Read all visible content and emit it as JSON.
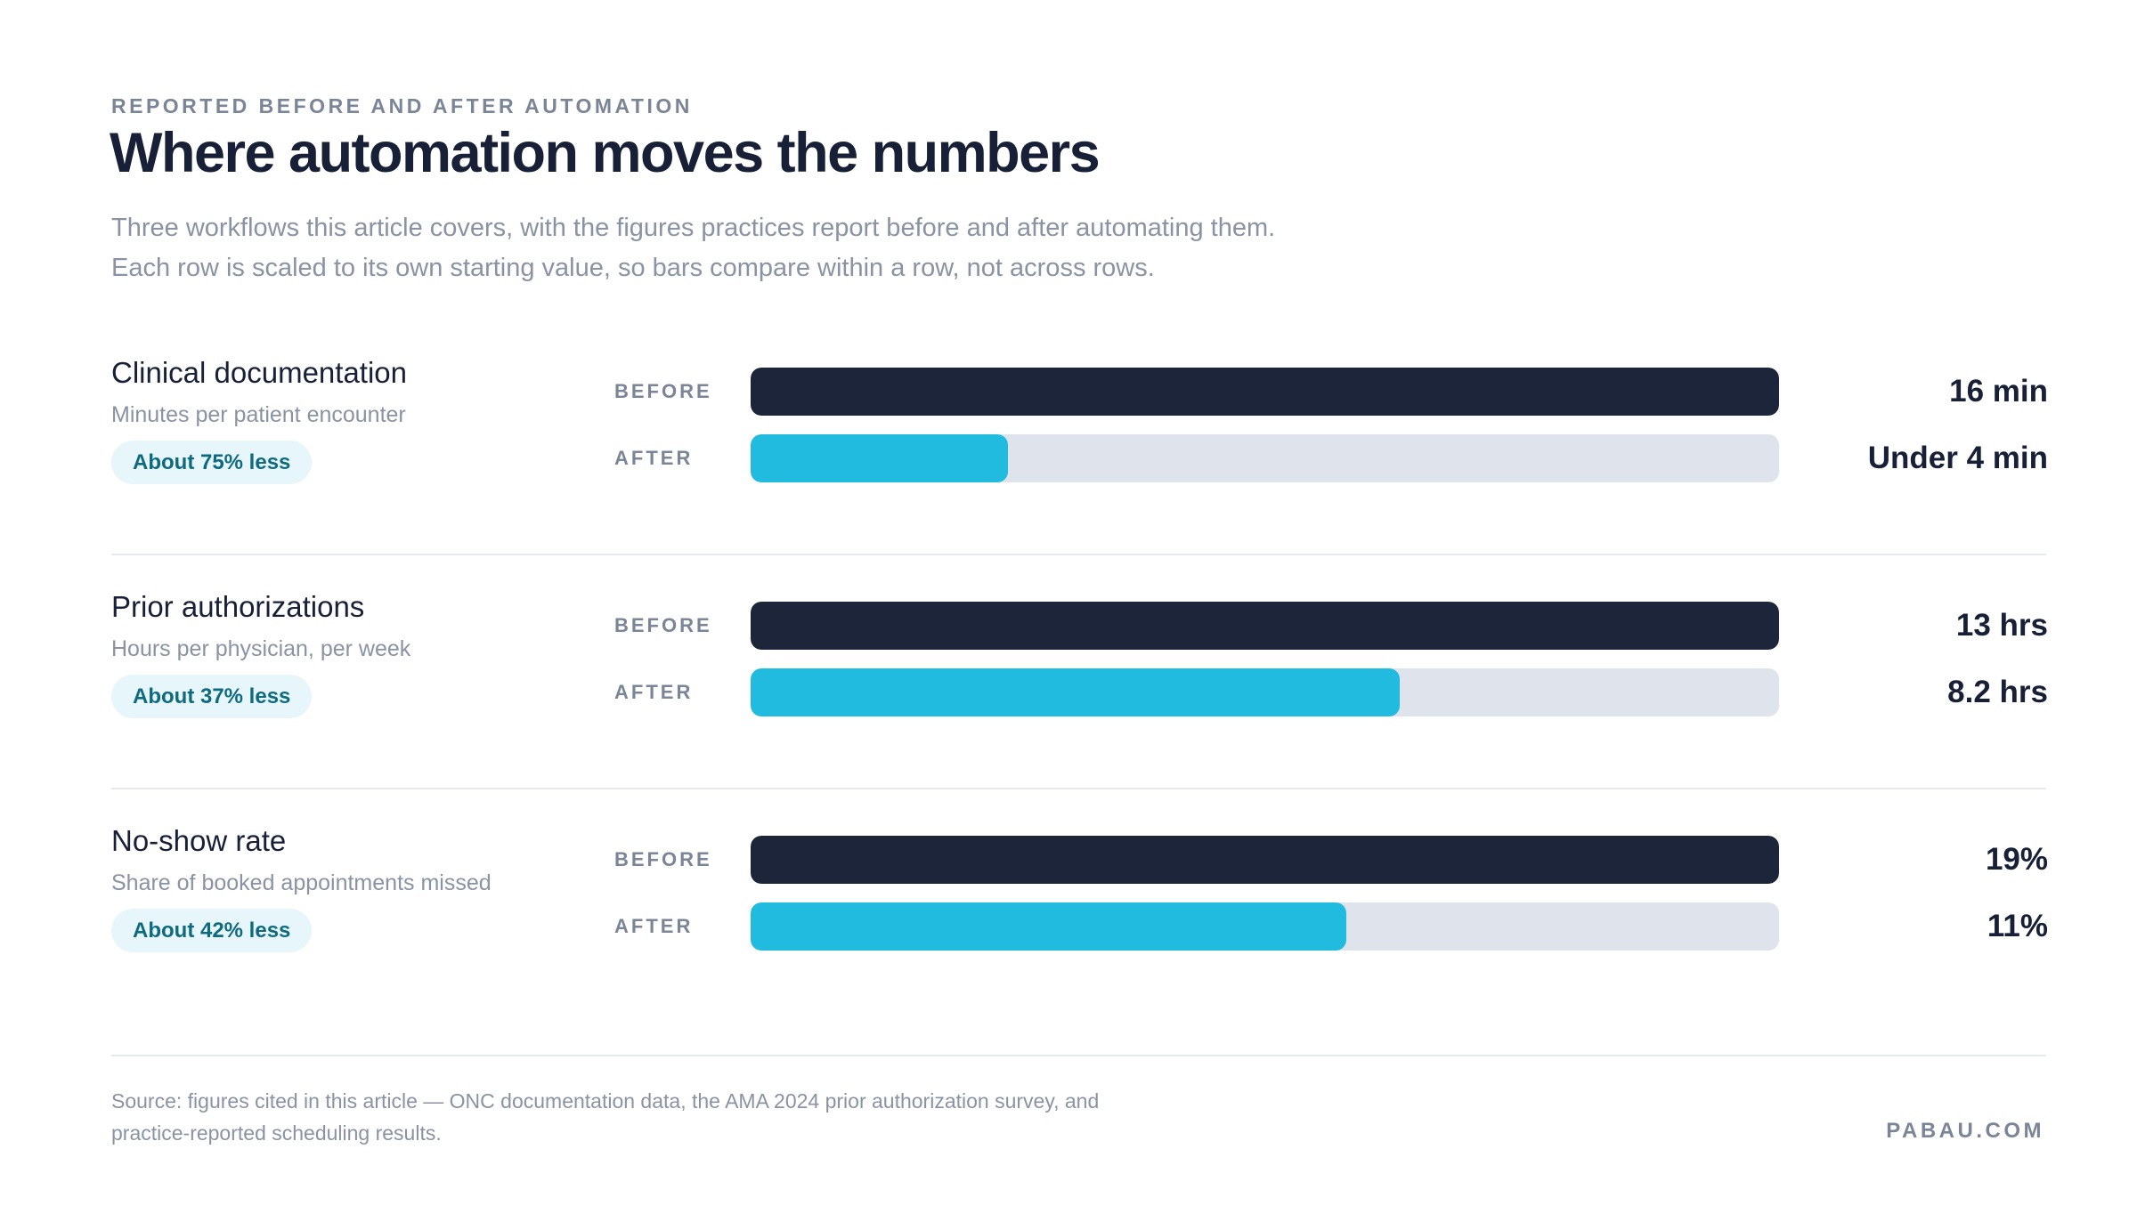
{
  "header": {
    "eyebrow": "REPORTED BEFORE AND AFTER AUTOMATION",
    "title": "Where automation moves the numbers",
    "subtitle_line1": "Three workflows this article covers, with the figures practices report before and after automating them.",
    "subtitle_line2": "Each row is scaled to its own starting value, so bars compare within a row, not across rows."
  },
  "labels": {
    "before": "BEFORE",
    "after": "AFTER"
  },
  "colors": {
    "before_bar": "#1c253a",
    "after_bar": "#22bbe0",
    "track": "#dfe3ec",
    "pill_bg": "#e6f6fb",
    "pill_text": "#0f6a7f"
  },
  "chart_data": {
    "type": "bar",
    "orientation": "horizontal",
    "note": "",
    "rows": [
      {
        "name": "Clinical documentation",
        "unit_description": "Minutes per patient encounter",
        "badge": "About 75% less",
        "before_value": 16,
        "after_value": 4,
        "before_label": "16 min",
        "after_label": "Under 4 min"
      },
      {
        "name": "Prior authorizations",
        "unit_description": "Hours per physician, per week",
        "badge": "About 37% less",
        "before_value": 13,
        "after_value": 8.2,
        "before_label": "13 hrs",
        "after_label": "8.2 hrs"
      },
      {
        "name": "No-show rate",
        "unit_description": "Share of booked appointments missed",
        "badge": "About 42% less",
        "before_value": 19,
        "after_value": 11,
        "before_label": "19%",
        "after_label": "11%"
      }
    ]
  },
  "footer": {
    "source_line1": "Source: figures cited in this article — ONC documentation data, the AMA 2024 prior authorization survey, and",
    "source_line2": "practice-reported scheduling results.",
    "brand": "PABAU.COM"
  }
}
